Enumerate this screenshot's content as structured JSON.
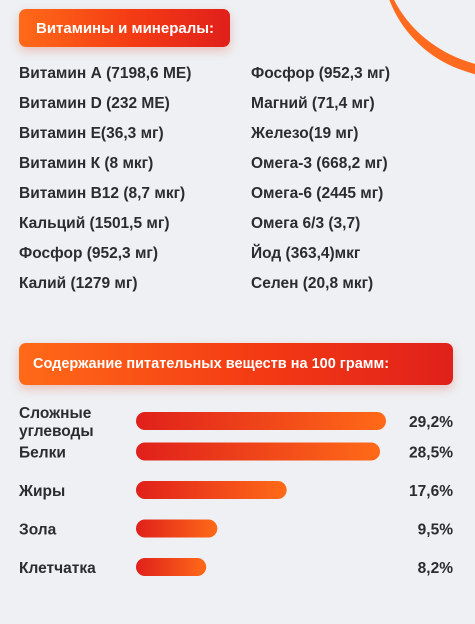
{
  "vitamins_header": "Витамины и минералы:",
  "minerals_left": [
    "Витамин А (7198,6 МЕ)",
    "Витамин D (232 МЕ)",
    "Витамин Е(36,3 мг)",
    "Витамин К (8 мкг)",
    "Витамин В12 (8,7 мкг)",
    "Кальций (1501,5 мг)",
    "Фосфор (952,3 мг)",
    "Калий (1279 мг)"
  ],
  "minerals_right": [
    "Фосфор (952,3 мг)",
    "Магний (71,4 мг)",
    "Железо(19 мг)",
    "Омега-3 (668,2 мг)",
    "Омега-6 (2445 мг)",
    "Омега 6/3 (3,7)",
    "Йод (363,4)мкг",
    "Селен (20,8 мкг)"
  ],
  "nutrients_header": "Содержание питательных веществ на 100 грамм:",
  "colors": {
    "accent_start": "#ff6a18",
    "accent_end": "#e0201b",
    "background": "#eef0f3"
  },
  "chart_data": {
    "type": "bar",
    "orientation": "horizontal",
    "categories": [
      [
        "Сложные",
        "углеводы"
      ],
      [
        "Белки"
      ],
      [
        "Жиры"
      ],
      [
        "Зола"
      ],
      [
        "Клетчатка"
      ]
    ],
    "values": [
      29.2,
      28.5,
      17.6,
      9.5,
      8.2
    ],
    "value_labels": [
      "29,2%",
      "28,5%",
      "17,6%",
      "9,5%",
      "8,2%"
    ],
    "unit": "%"
  }
}
